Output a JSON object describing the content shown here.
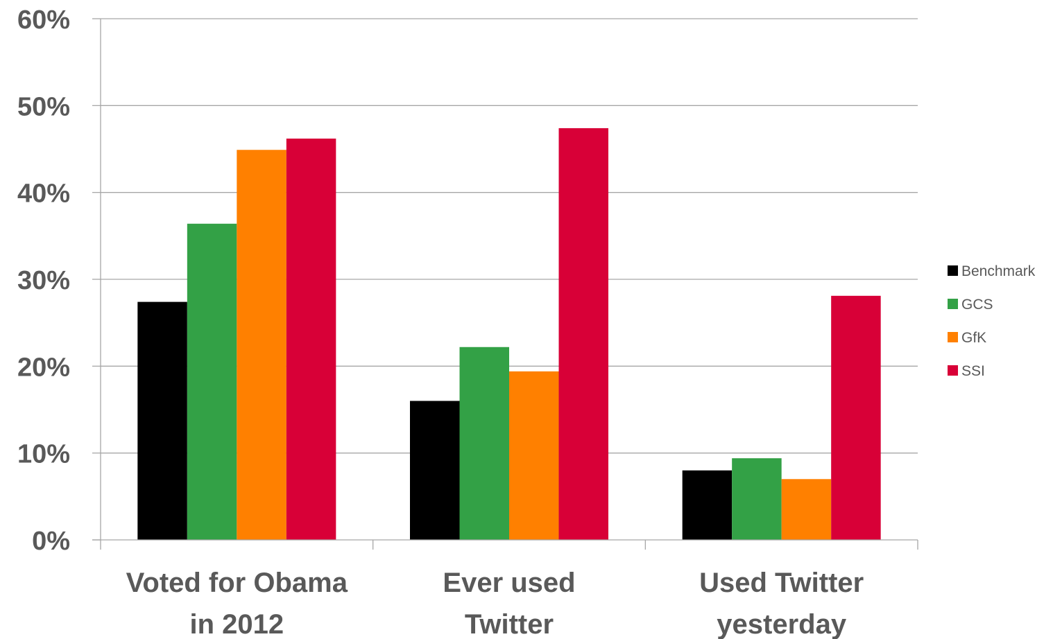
{
  "chart_data": {
    "type": "bar",
    "categories": [
      [
        "Voted for Obama",
        "in 2012"
      ],
      [
        "Ever used",
        "Twitter"
      ],
      [
        "Used Twitter",
        "yesterday"
      ]
    ],
    "series": [
      {
        "name": "Benchmark",
        "color": "#000000",
        "values": [
          27.4,
          16.0,
          8.0
        ]
      },
      {
        "name": "GCS",
        "color": "#33A146",
        "values": [
          36.4,
          22.2,
          9.4
        ]
      },
      {
        "name": "GfK",
        "color": "#FF8000",
        "values": [
          44.9,
          19.4,
          7.0
        ]
      },
      {
        "name": "SSI",
        "color": "#D80037",
        "values": [
          46.2,
          47.4,
          28.1
        ]
      }
    ],
    "yticks": [
      "0%",
      "10%",
      "20%",
      "30%",
      "40%",
      "50%",
      "60%"
    ],
    "ylim": [
      0,
      60
    ],
    "grid": true,
    "legend_position": "right"
  }
}
